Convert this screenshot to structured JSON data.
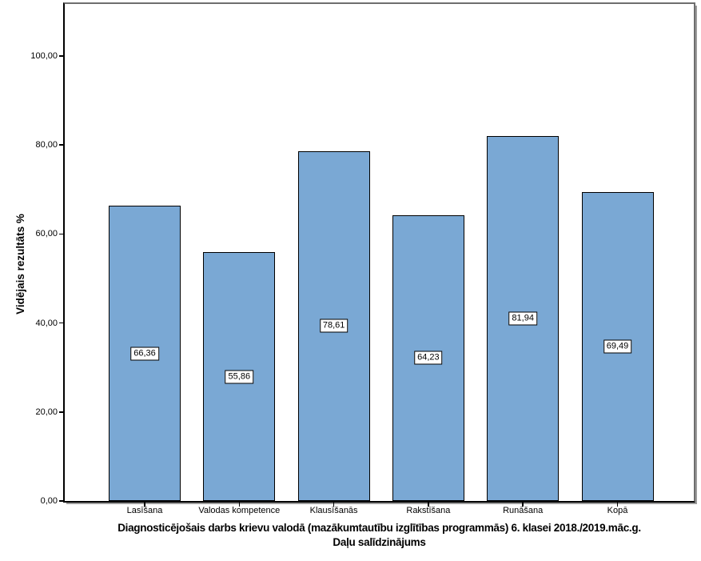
{
  "chart_data": {
    "type": "bar",
    "title_line1": "Diagnosticējošais darbs krievu valodā (mazākumtautību izglītības programmās) 6. klasei 2018./2019.māc.g.",
    "title_line2": "Daļu salīdzinājums",
    "ylabel": "Vidējais rezultāts %",
    "xlabel": "",
    "categories": [
      "Lasīšana",
      "Valodas kompetence",
      "Klausīšanās",
      "Rakstīšana",
      "Runāšana",
      "Kopā"
    ],
    "values": [
      66.36,
      55.86,
      78.61,
      64.23,
      81.94,
      69.49
    ],
    "value_labels": [
      "66,36",
      "55,86",
      "78,61",
      "64,23",
      "81,94",
      "69,49"
    ],
    "y_ticks": [
      {
        "value": 0,
        "label": "0,00"
      },
      {
        "value": 20,
        "label": "20,00"
      },
      {
        "value": 40,
        "label": "40,00"
      },
      {
        "value": 60,
        "label": "60,00"
      },
      {
        "value": 80,
        "label": "80,00"
      },
      {
        "value": 100,
        "label": "100,00"
      }
    ],
    "ylim": [
      0,
      111.7
    ],
    "grid": false,
    "legend": null,
    "colors": {
      "bar_fill": "#7AA8D4",
      "bar_border": "#000000",
      "frame": "#6E6E6E",
      "axis": "#000000",
      "shadow": "#9B9B9B",
      "value_box_bg": "#FFFFFF",
      "value_box_border": "#000000",
      "background": "#FFFFFF",
      "text": "#000000"
    }
  }
}
